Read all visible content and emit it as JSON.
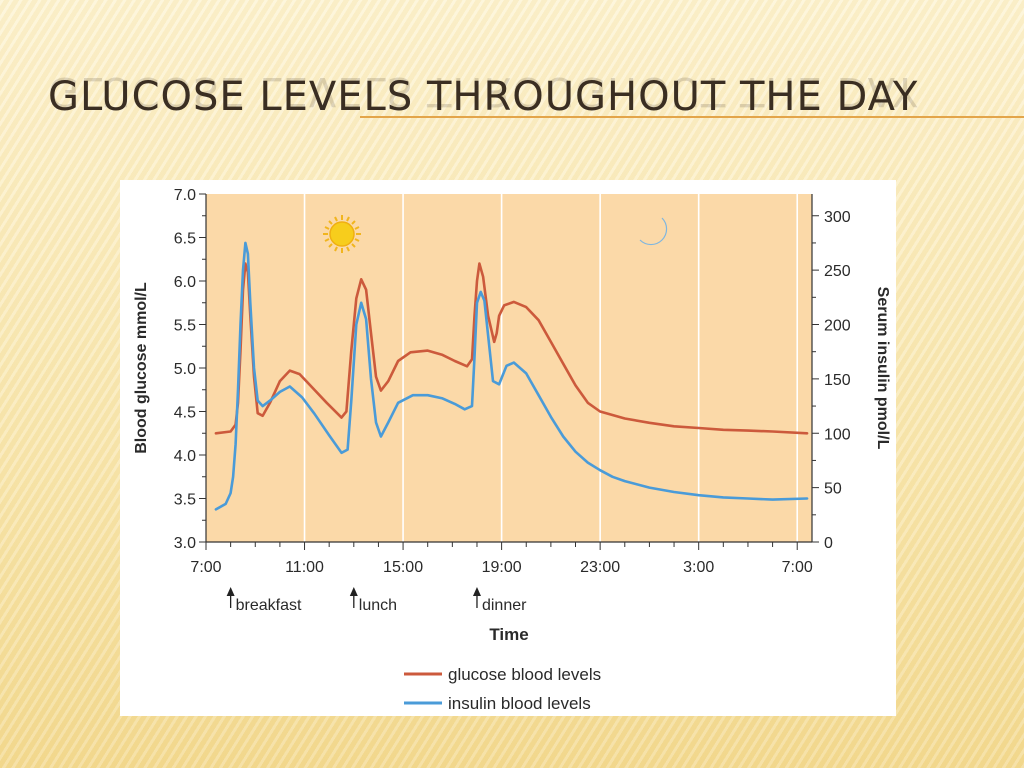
{
  "slide": {
    "title": "GLUCOSE LEVELS THROUGHOUT THE DAY"
  },
  "colors": {
    "glucose": "#cc5a3c",
    "insulin": "#4a9bd8",
    "plot_bg": "#fbd9a8",
    "title_underline": "#e3a54a"
  },
  "icons": {
    "sun": "sun-icon",
    "moon": "moon-icon"
  },
  "chart_data": {
    "type": "line",
    "xlabel": "Time",
    "ylabel": "Blood glucose mmol/L",
    "y2label": "Serum insulin pmol/L",
    "ylim": [
      3.0,
      7.0
    ],
    "y2lim": [
      0,
      320
    ],
    "yticks": [
      "3.0",
      "3.5",
      "4.0",
      "4.5",
      "5.0",
      "5.5",
      "6.0",
      "6.5",
      "7.0"
    ],
    "y2ticks": [
      "0",
      "50",
      "100",
      "150",
      "200",
      "250",
      "300"
    ],
    "xticks": [
      "7:00",
      "11:00",
      "15:00",
      "19:00",
      "23:00",
      "3:00",
      "7:00"
    ],
    "x_unit": "hours since 7:00 (0 = 7:00, 24 = 7:00 next day)",
    "grid": "vertical",
    "legend_placement": "bottom-center",
    "annotations": [
      {
        "label": "breakfast",
        "x": 1
      },
      {
        "label": "lunch",
        "x": 6
      },
      {
        "label": "dinner",
        "x": 11
      }
    ],
    "series": [
      {
        "name": "glucose blood levels",
        "axis": "left",
        "points": [
          [
            0.4,
            4.25
          ],
          [
            1.0,
            4.27
          ],
          [
            1.2,
            4.35
          ],
          [
            1.3,
            4.6
          ],
          [
            1.4,
            5.2
          ],
          [
            1.5,
            5.9
          ],
          [
            1.6,
            6.2
          ],
          [
            1.7,
            6.1
          ],
          [
            1.8,
            5.6
          ],
          [
            1.95,
            4.9
          ],
          [
            2.1,
            4.48
          ],
          [
            2.3,
            4.45
          ],
          [
            2.6,
            4.6
          ],
          [
            3.0,
            4.85
          ],
          [
            3.4,
            4.97
          ],
          [
            3.8,
            4.93
          ],
          [
            4.3,
            4.78
          ],
          [
            4.9,
            4.6
          ],
          [
            5.5,
            4.43
          ],
          [
            5.7,
            4.5
          ],
          [
            5.9,
            5.2
          ],
          [
            6.1,
            5.8
          ],
          [
            6.3,
            6.02
          ],
          [
            6.5,
            5.9
          ],
          [
            6.7,
            5.4
          ],
          [
            6.9,
            4.9
          ],
          [
            7.1,
            4.74
          ],
          [
            7.4,
            4.85
          ],
          [
            7.8,
            5.08
          ],
          [
            8.3,
            5.18
          ],
          [
            9.0,
            5.2
          ],
          [
            9.6,
            5.15
          ],
          [
            10.1,
            5.08
          ],
          [
            10.6,
            5.02
          ],
          [
            10.8,
            5.1
          ],
          [
            10.9,
            5.6
          ],
          [
            11.0,
            6.0
          ],
          [
            11.1,
            6.2
          ],
          [
            11.25,
            6.05
          ],
          [
            11.45,
            5.6
          ],
          [
            11.7,
            5.3
          ],
          [
            11.8,
            5.4
          ],
          [
            11.9,
            5.6
          ],
          [
            12.1,
            5.72
          ],
          [
            12.5,
            5.76
          ],
          [
            13.0,
            5.7
          ],
          [
            13.5,
            5.55
          ],
          [
            14.0,
            5.3
          ],
          [
            14.5,
            5.05
          ],
          [
            15.0,
            4.8
          ],
          [
            15.5,
            4.6
          ],
          [
            16.0,
            4.5
          ],
          [
            17.0,
            4.42
          ],
          [
            18.0,
            4.37
          ],
          [
            19.0,
            4.33
          ],
          [
            20.0,
            4.31
          ],
          [
            21.0,
            4.29
          ],
          [
            22.0,
            4.28
          ],
          [
            23.0,
            4.27
          ],
          [
            24.4,
            4.25
          ]
        ]
      },
      {
        "name": "insulin blood levels",
        "axis": "right",
        "points": [
          [
            0.4,
            30
          ],
          [
            0.8,
            35
          ],
          [
            1.0,
            45
          ],
          [
            1.1,
            60
          ],
          [
            1.2,
            90
          ],
          [
            1.3,
            140
          ],
          [
            1.4,
            200
          ],
          [
            1.5,
            250
          ],
          [
            1.6,
            275
          ],
          [
            1.7,
            265
          ],
          [
            1.8,
            220
          ],
          [
            1.95,
            160
          ],
          [
            2.1,
            130
          ],
          [
            2.3,
            125
          ],
          [
            2.6,
            130
          ],
          [
            3.0,
            138
          ],
          [
            3.4,
            143
          ],
          [
            3.9,
            133
          ],
          [
            4.4,
            118
          ],
          [
            5.0,
            98
          ],
          [
            5.5,
            82
          ],
          [
            5.75,
            85
          ],
          [
            5.9,
            130
          ],
          [
            6.1,
            200
          ],
          [
            6.3,
            220
          ],
          [
            6.5,
            205
          ],
          [
            6.7,
            150
          ],
          [
            6.9,
            110
          ],
          [
            7.1,
            97
          ],
          [
            7.4,
            110
          ],
          [
            7.8,
            128
          ],
          [
            8.4,
            135
          ],
          [
            9.0,
            135
          ],
          [
            9.6,
            132
          ],
          [
            10.1,
            127
          ],
          [
            10.5,
            122
          ],
          [
            10.8,
            125
          ],
          [
            10.9,
            170
          ],
          [
            11.0,
            220
          ],
          [
            11.15,
            230
          ],
          [
            11.3,
            222
          ],
          [
            11.45,
            190
          ],
          [
            11.65,
            148
          ],
          [
            11.9,
            145
          ],
          [
            12.2,
            162
          ],
          [
            12.5,
            165
          ],
          [
            13.0,
            155
          ],
          [
            13.5,
            135
          ],
          [
            14.0,
            115
          ],
          [
            14.5,
            97
          ],
          [
            15.0,
            83
          ],
          [
            15.5,
            73
          ],
          [
            16.0,
            66
          ],
          [
            16.5,
            60
          ],
          [
            17.0,
            56
          ],
          [
            18.0,
            50
          ],
          [
            19.0,
            46
          ],
          [
            20.0,
            43
          ],
          [
            21.0,
            41
          ],
          [
            22.0,
            40
          ],
          [
            23.0,
            39
          ],
          [
            24.4,
            40
          ]
        ]
      }
    ]
  }
}
